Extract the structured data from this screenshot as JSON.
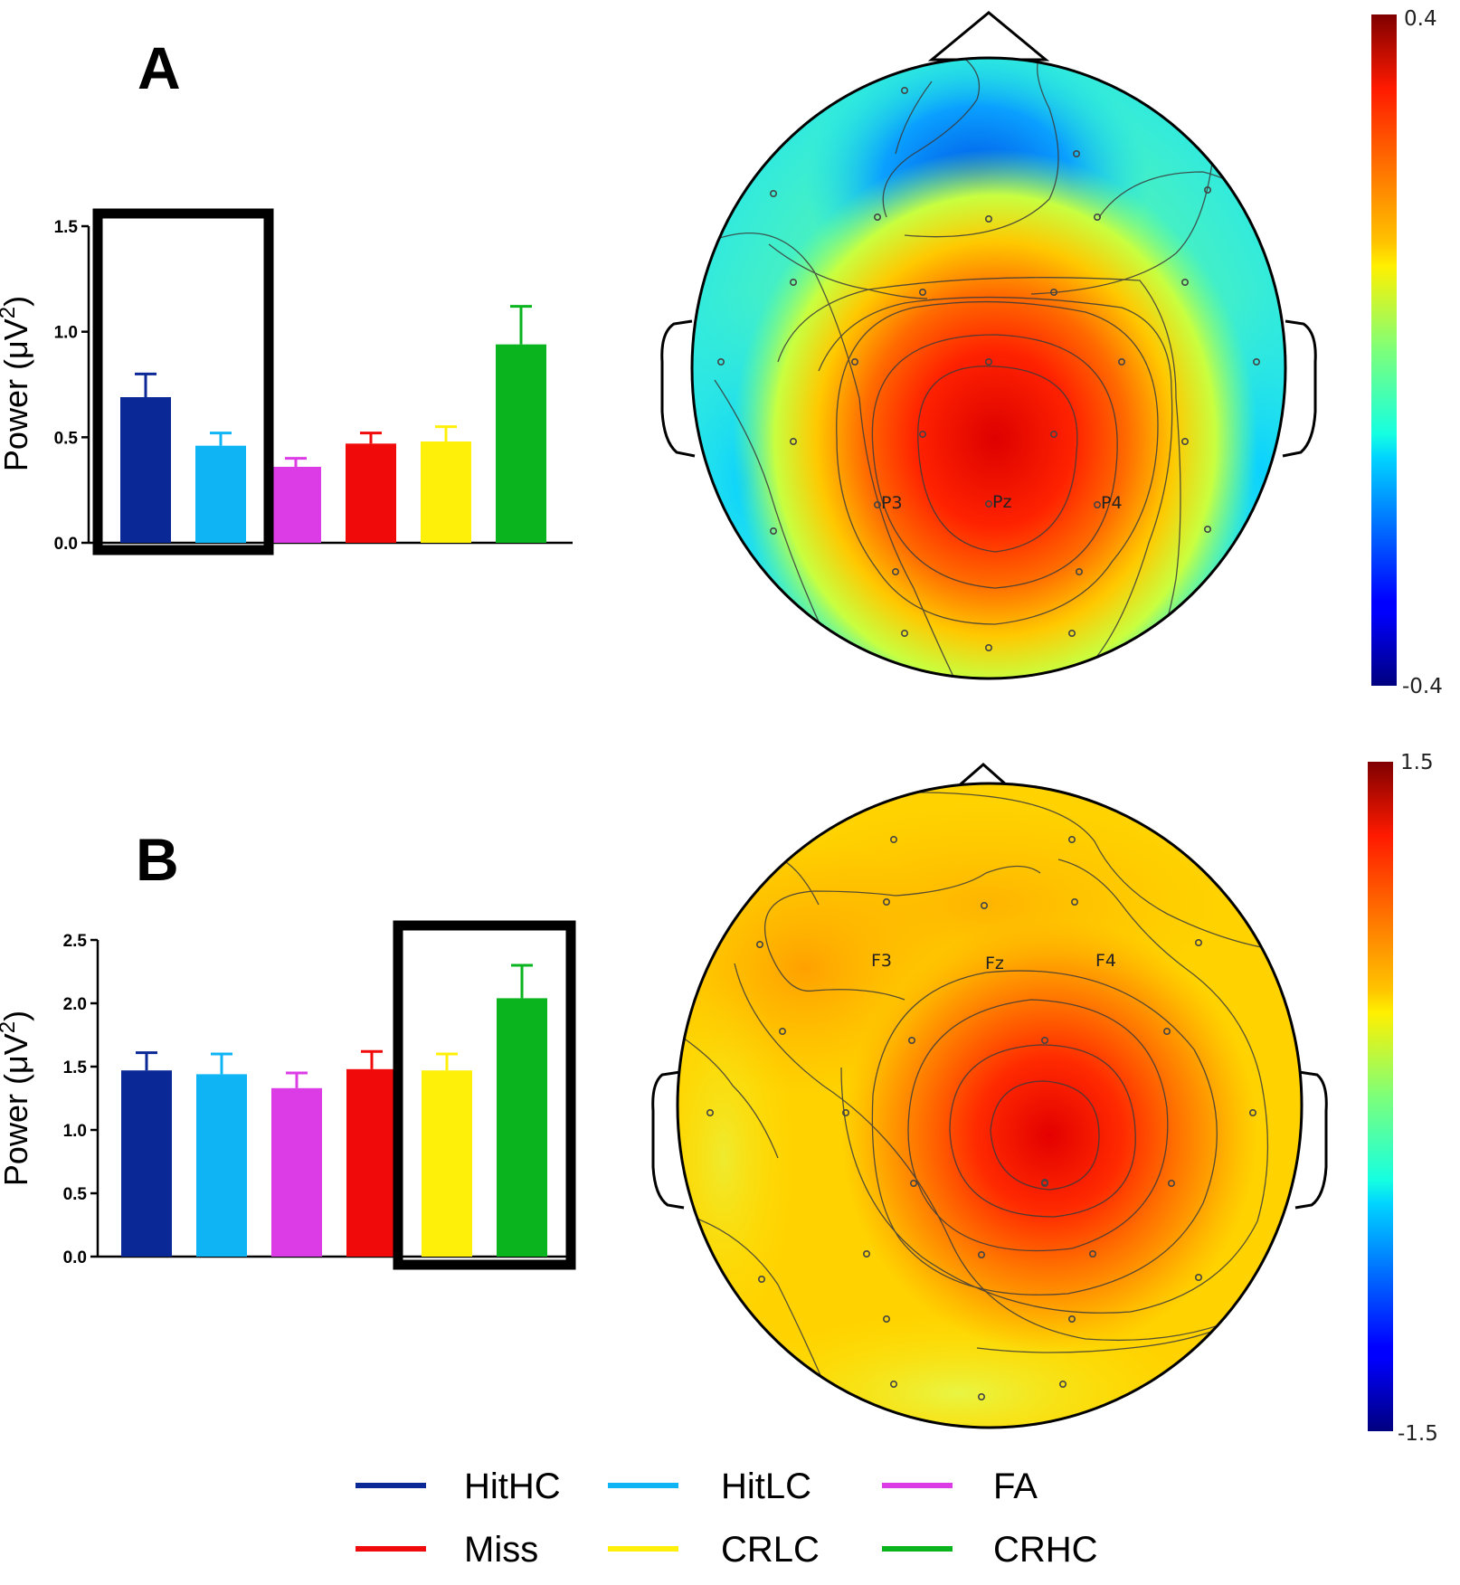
{
  "legend": [
    {
      "label": "HitHC",
      "color": "#0a2896"
    },
    {
      "label": "HitLC",
      "color": "#0fb4f5"
    },
    {
      "label": "FA",
      "color": "#dc3ce6"
    },
    {
      "label": "Miss",
      "color": "#f00a0a"
    },
    {
      "label": "CRLC",
      "color": "#fff00a"
    },
    {
      "label": "CRHC",
      "color": "#0ab41e"
    }
  ],
  "chart_data": [
    {
      "panel": "A",
      "type": "bar",
      "ylabel": "Power (μV²)",
      "ylim": [
        0,
        1.5
      ],
      "yticks": [
        "0.0",
        "0.5",
        "1.0",
        "1.5"
      ],
      "categories": [
        "HitHC",
        "HitLC",
        "FA",
        "Miss",
        "CRLC",
        "CRHC"
      ],
      "values": [
        0.69,
        0.46,
        0.36,
        0.47,
        0.48,
        0.94
      ],
      "errors": [
        0.11,
        0.06,
        0.04,
        0.05,
        0.07,
        0.18
      ],
      "highlight": [
        "HitHC",
        "HitLC"
      ]
    },
    {
      "panel": "B",
      "type": "bar",
      "ylabel": "Power (μV²)",
      "ylim": [
        0,
        2.5
      ],
      "yticks": [
        "0.0",
        "0.5",
        "1.0",
        "1.5",
        "2.0",
        "2.5"
      ],
      "categories": [
        "HitHC",
        "HitLC",
        "FA",
        "Miss",
        "CRLC",
        "CRHC"
      ],
      "values": [
        1.47,
        1.44,
        1.33,
        1.48,
        1.47,
        2.04
      ],
      "errors": [
        0.14,
        0.16,
        0.12,
        0.14,
        0.13,
        0.26
      ],
      "highlight": [
        "CRLC",
        "CRHC"
      ]
    },
    {
      "panel": "A",
      "type": "heatmap",
      "description_source": "scalp topography",
      "colorbar": {
        "max": "0.4",
        "min": "-0.4",
        "colormap": "jet"
      },
      "electrode_labels": [
        "P3",
        "Pz",
        "P4"
      ],
      "peak_region": "parietal (Pz)"
    },
    {
      "panel": "B",
      "type": "heatmap",
      "colorbar": {
        "max": "1.5",
        "min": "-1.5",
        "colormap": "jet"
      },
      "electrode_labels": [
        "F3",
        "Fz",
        "F4"
      ],
      "peak_region": "central-right"
    }
  ]
}
